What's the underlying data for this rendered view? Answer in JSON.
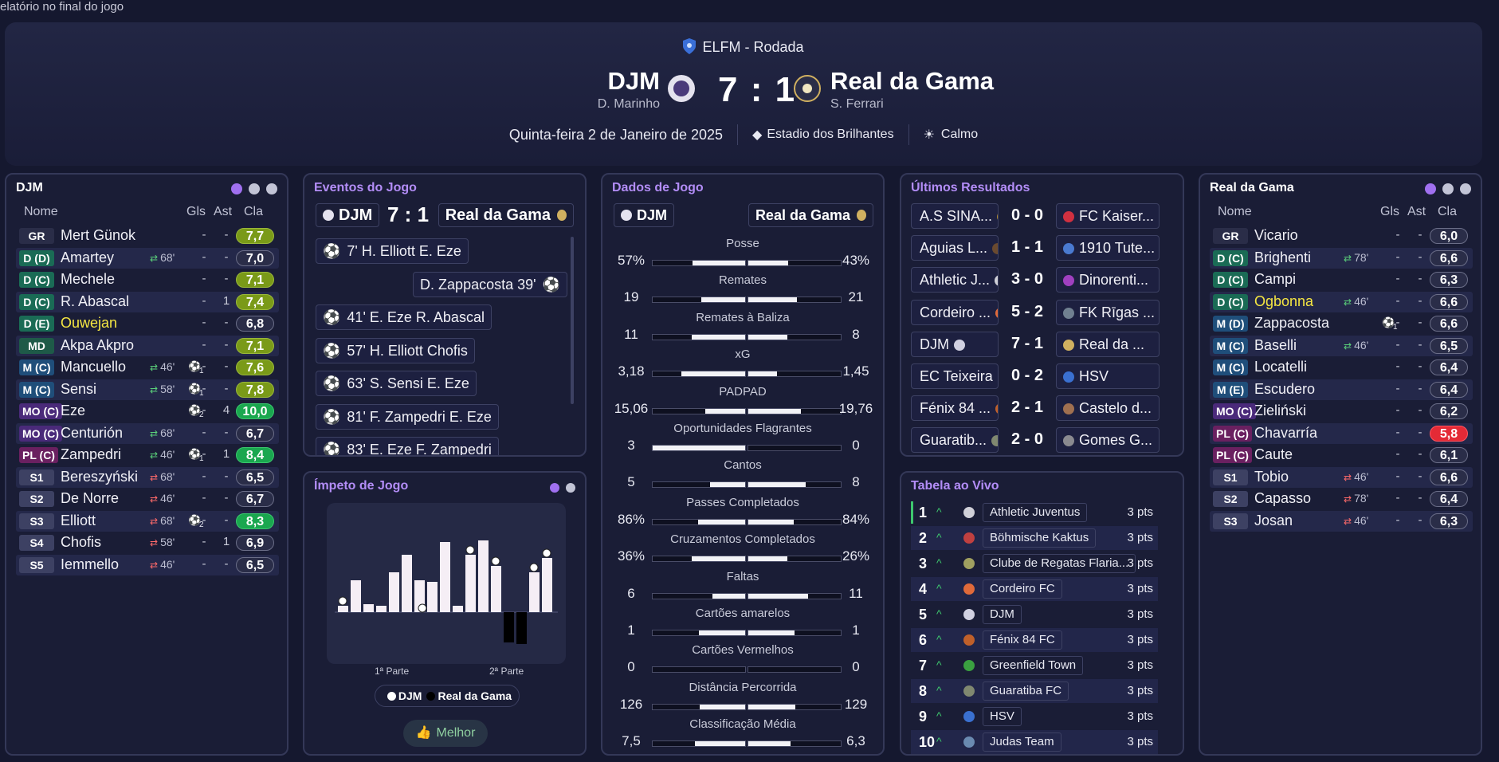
{
  "topbar": {
    "text": "elatório no final do jogo"
  },
  "header": {
    "competition": "ELFM - Rodada",
    "home": {
      "name": "DJM",
      "manager": "D. Marinho"
    },
    "away": {
      "name": "Real da Gama",
      "manager": "S. Ferrari"
    },
    "score": "7 : 1",
    "date": "Quinta-feira 2 de Janeiro de 2025",
    "stadium": "Estadio dos Brilhantes",
    "weather": "Calmo"
  },
  "labels": {
    "name": "Nome",
    "gls": "Gls",
    "ast": "Ast",
    "cla": "Cla"
  },
  "home_panel": {
    "title": "DJM",
    "players": [
      {
        "pos": "GR",
        "name": "Mert Günok",
        "sub": "",
        "gls": "-",
        "ast": "-",
        "rating": "7,7",
        "rc": "olive",
        "pc": "#2a2d48",
        "ev": ""
      },
      {
        "pos": "D (D)",
        "name": "Amartey",
        "sub": "68'",
        "subdir": "out",
        "gls": "-",
        "ast": "-",
        "rating": "7,0",
        "rc": "",
        "pc": "#1a6b55",
        "ev": ""
      },
      {
        "pos": "D (C)",
        "name": "Mechele",
        "sub": "",
        "gls": "-",
        "ast": "-",
        "rating": "7,1",
        "rc": "olive",
        "pc": "#1a6b55",
        "ev": ""
      },
      {
        "pos": "D (C)",
        "name": "R. Abascal",
        "sub": "",
        "gls": "-",
        "ast": "1",
        "rating": "7,4",
        "rc": "olive",
        "pc": "#1a6b55",
        "ev": ""
      },
      {
        "pos": "D (E)",
        "name": "Ouwejan",
        "sub": "",
        "gls": "-",
        "ast": "-",
        "rating": "6,8",
        "rc": "",
        "pc": "#1a6b55",
        "ev": "",
        "yellow": true
      },
      {
        "pos": "MD",
        "name": "Akpa Akpro",
        "sub": "",
        "gls": "-",
        "ast": "-",
        "rating": "7,1",
        "rc": "olive",
        "pc": "#1e5a48",
        "ev": ""
      },
      {
        "pos": "M (C)",
        "name": "Mancuello",
        "sub": "46'",
        "subdir": "out",
        "gls": "-",
        "ast": "-",
        "rating": "7,6",
        "rc": "olive",
        "pc": "#1f4e7a",
        "ev": "1"
      },
      {
        "pos": "M (C)",
        "name": "Sensi",
        "sub": "58'",
        "subdir": "out",
        "gls": "-",
        "ast": "-",
        "rating": "7,8",
        "rc": "olive",
        "pc": "#1f4e7a",
        "ev": "1"
      },
      {
        "pos": "MO (C)",
        "name": "Eze",
        "sub": "",
        "gls": "-",
        "ast": "4",
        "rating": "10,0",
        "rc": "green",
        "pc": "#4a2a7a",
        "ev": "2"
      },
      {
        "pos": "MO (C)",
        "name": "Centurión",
        "sub": "68'",
        "subdir": "out",
        "gls": "-",
        "ast": "-",
        "rating": "6,7",
        "rc": "",
        "pc": "#4a2a7a",
        "ev": ""
      },
      {
        "pos": "PL (C)",
        "name": "Zampedri",
        "sub": "46'",
        "subdir": "out",
        "gls": "-",
        "ast": "1",
        "rating": "8,4",
        "rc": "green",
        "pc": "#6a2060",
        "ev": "1"
      },
      {
        "pos": "S1",
        "name": "Bereszyński",
        "sub": "68'",
        "subdir": "in",
        "gls": "-",
        "ast": "-",
        "rating": "6,5",
        "rc": "",
        "pc": "#3d4163",
        "ev": ""
      },
      {
        "pos": "S2",
        "name": "De Norre",
        "sub": "46'",
        "subdir": "in",
        "gls": "-",
        "ast": "-",
        "rating": "6,7",
        "rc": "",
        "pc": "#3d4163",
        "ev": ""
      },
      {
        "pos": "S3",
        "name": "Elliott",
        "sub": "68'",
        "subdir": "in",
        "gls": "-",
        "ast": "-",
        "rating": "8,3",
        "rc": "green",
        "pc": "#3d4163",
        "ev": "2"
      },
      {
        "pos": "S4",
        "name": "Chofis",
        "sub": "58'",
        "subdir": "in",
        "gls": "-",
        "ast": "1",
        "rating": "6,9",
        "rc": "",
        "pc": "#3d4163",
        "ev": ""
      },
      {
        "pos": "S5",
        "name": "Iemmello",
        "sub": "46'",
        "subdir": "in",
        "gls": "-",
        "ast": "-",
        "rating": "6,5",
        "rc": "",
        "pc": "#3d4163",
        "ev": ""
      }
    ]
  },
  "events_panel": {
    "title": "Eventos do Jogo",
    "home": "DJM",
    "score": "7 : 1",
    "away": "Real da Gama",
    "events": [
      {
        "side": "home",
        "text": "7' H. Elliott E. Eze"
      },
      {
        "side": "away",
        "text": "D. Zappacosta 39'"
      },
      {
        "side": "home",
        "text": "41' E. Eze R. Abascal"
      },
      {
        "side": "home",
        "text": "57' H. Elliott Chofis"
      },
      {
        "side": "home",
        "text": "63' S. Sensi E. Eze"
      },
      {
        "side": "home",
        "text": "81' F. Zampedri E. Eze"
      },
      {
        "side": "home",
        "text": "83' E. Eze F. Zampedri"
      }
    ]
  },
  "momentum_panel": {
    "title": "Ímpeto de Jogo",
    "half1": "1ª Parte",
    "half2": "2ª Parte",
    "legend_home": "DJM",
    "legend_away": "Real da Gama",
    "best": "Melhor"
  },
  "stats_panel": {
    "title": "Dados de Jogo",
    "home": "DJM",
    "away": "Real da Gama",
    "stats": [
      {
        "label": "Posse",
        "l": "57%",
        "r": "43%",
        "lp": 0.57,
        "rp": 0.43
      },
      {
        "label": "Remates",
        "l": "19",
        "r": "21",
        "lp": 0.475,
        "rp": 0.525
      },
      {
        "label": "Remates à Baliza",
        "l": "11",
        "r": "8",
        "lp": 0.58,
        "rp": 0.42
      },
      {
        "label": "xG",
        "l": "3,18",
        "r": "1,45",
        "lp": 0.69,
        "rp": 0.31
      },
      {
        "label": "PADPAD",
        "l": "15,06",
        "r": "19,76",
        "lp": 0.43,
        "rp": 0.57
      },
      {
        "label": "Oportunidades Flagrantes",
        "l": "3",
        "r": "0",
        "lp": 1,
        "rp": 0
      },
      {
        "label": "Cantos",
        "l": "5",
        "r": "8",
        "lp": 0.38,
        "rp": 0.62
      },
      {
        "label": "Passes Completados",
        "l": "86%",
        "r": "84%",
        "lp": 0.51,
        "rp": 0.49
      },
      {
        "label": "Cruzamentos Completados",
        "l": "36%",
        "r": "26%",
        "lp": 0.58,
        "rp": 0.42
      },
      {
        "label": "Faltas",
        "l": "6",
        "r": "11",
        "lp": 0.35,
        "rp": 0.65
      },
      {
        "label": "Cartões amarelos",
        "l": "1",
        "r": "1",
        "lp": 0.5,
        "rp": 0.5
      },
      {
        "label": "Cartões Vermelhos",
        "l": "0",
        "r": "0",
        "lp": 0,
        "rp": 0
      },
      {
        "label": "Distância Percorrida",
        "l": "126",
        "r": "129",
        "lp": 0.49,
        "rp": 0.51
      },
      {
        "label": "Classificação Média",
        "l": "7,5",
        "r": "6,3",
        "lp": 0.54,
        "rp": 0.46
      }
    ]
  },
  "results_panel": {
    "title": "Últimos Resultados",
    "results": [
      {
        "home": "A.S SINA...",
        "score": "0 - 0",
        "away": "FC Kaiser...",
        "hc": "#b08a30",
        "ac": "#d03040"
      },
      {
        "home": "Aguias L...",
        "score": "1 - 1",
        "away": "1910 Tute...",
        "hc": "#6a4a30",
        "ac": "#4a7ad0"
      },
      {
        "home": "Athletic J...",
        "score": "3 - 0",
        "away": "Dinorenti...",
        "hc": "#d0d0d8",
        "ac": "#a040c0"
      },
      {
        "home": "Cordeiro ...",
        "score": "5 - 2",
        "away": "FK Rīgas ...",
        "hc": "#e06a3a",
        "ac": "#708090"
      },
      {
        "home": "DJM",
        "score": "7 - 1",
        "away": "Real da ...",
        "hc": "#d0d0e0",
        "ac": "#d0b060"
      },
      {
        "home": "EC Teixeira",
        "score": "0 - 2",
        "away": "HSV",
        "hc": "#a04050",
        "ac": "#3a70d0"
      },
      {
        "home": "Fénix 84 ...",
        "score": "2 - 1",
        "away": "Castelo d...",
        "hc": "#c0602a",
        "ac": "#a07050"
      },
      {
        "home": "Guaratib...",
        "score": "2 - 0",
        "away": "Gomes G...",
        "hc": "#808870",
        "ac": "#8a8a90"
      }
    ]
  },
  "table_panel": {
    "title": "Tabela ao Vivo",
    "rows": [
      {
        "rank": "1",
        "name": "Athletic Juventus",
        "pts": "3 pts",
        "c": "#d0d0d8"
      },
      {
        "rank": "2",
        "name": "Böhmische Kaktus",
        "pts": "3 pts",
        "c": "#c04040"
      },
      {
        "rank": "3",
        "name": "Clube de Regatas Flaria...",
        "pts": "3 pts",
        "c": "#a0a060"
      },
      {
        "rank": "4",
        "name": "Cordeiro FC",
        "pts": "3 pts",
        "c": "#e06a3a"
      },
      {
        "rank": "5",
        "name": "DJM",
        "pts": "3 pts",
        "c": "#d0d0e0"
      },
      {
        "rank": "6",
        "name": "Fénix 84 FC",
        "pts": "3 pts",
        "c": "#c0602a"
      },
      {
        "rank": "7",
        "name": "Greenfield Town",
        "pts": "3 pts",
        "c": "#3aa040"
      },
      {
        "rank": "8",
        "name": "Guaratiba FC",
        "pts": "3 pts",
        "c": "#808870"
      },
      {
        "rank": "9",
        "name": "HSV",
        "pts": "3 pts",
        "c": "#3a70d0"
      },
      {
        "rank": "10",
        "name": "Judas Team",
        "pts": "3 pts",
        "c": "#6a8ab0"
      }
    ]
  },
  "away_panel": {
    "title": "Real da Gama",
    "players": [
      {
        "pos": "GR",
        "name": "Vicario",
        "sub": "",
        "gls": "-",
        "ast": "-",
        "rating": "6,0",
        "rc": "",
        "pc": "#2a2d48",
        "ev": ""
      },
      {
        "pos": "D (C)",
        "name": "Brighenti",
        "sub": "78'",
        "subdir": "out",
        "gls": "-",
        "ast": "-",
        "rating": "6,6",
        "rc": "",
        "pc": "#1a6b55",
        "ev": ""
      },
      {
        "pos": "D (C)",
        "name": "Campi",
        "sub": "",
        "gls": "-",
        "ast": "-",
        "rating": "6,3",
        "rc": "",
        "pc": "#1a6b55",
        "ev": ""
      },
      {
        "pos": "D (C)",
        "name": "Ogbonna",
        "sub": "46'",
        "subdir": "out",
        "gls": "-",
        "ast": "-",
        "rating": "6,6",
        "rc": "",
        "pc": "#1a6b55",
        "ev": "",
        "yellow": true
      },
      {
        "pos": "M (D)",
        "name": "Zappacosta",
        "sub": "",
        "gls": "-",
        "ast": "-",
        "rating": "6,6",
        "rc": "",
        "pc": "#1f4e7a",
        "ev": "1"
      },
      {
        "pos": "M (C)",
        "name": "Baselli",
        "sub": "46'",
        "subdir": "out",
        "gls": "-",
        "ast": "-",
        "rating": "6,5",
        "rc": "",
        "pc": "#1f4e7a",
        "ev": ""
      },
      {
        "pos": "M (C)",
        "name": "Locatelli",
        "sub": "",
        "gls": "-",
        "ast": "-",
        "rating": "6,4",
        "rc": "",
        "pc": "#1f4e7a",
        "ev": ""
      },
      {
        "pos": "M (E)",
        "name": "Escudero",
        "sub": "",
        "gls": "-",
        "ast": "-",
        "rating": "6,4",
        "rc": "",
        "pc": "#1f4e7a",
        "ev": ""
      },
      {
        "pos": "MO (C)",
        "name": "Zieliński",
        "sub": "",
        "gls": "-",
        "ast": "-",
        "rating": "6,2",
        "rc": "",
        "pc": "#4a2a7a",
        "ev": ""
      },
      {
        "pos": "PL (C)",
        "name": "Chavarría",
        "sub": "",
        "gls": "-",
        "ast": "-",
        "rating": "5,8",
        "rc": "red",
        "pc": "#6a2060",
        "ev": ""
      },
      {
        "pos": "PL (C)",
        "name": "Caute",
        "sub": "",
        "gls": "-",
        "ast": "-",
        "rating": "6,1",
        "rc": "",
        "pc": "#6a2060",
        "ev": ""
      },
      {
        "pos": "S1",
        "name": "Tobio",
        "sub": "46'",
        "subdir": "in",
        "gls": "-",
        "ast": "-",
        "rating": "6,6",
        "rc": "",
        "pc": "#3d4163",
        "ev": ""
      },
      {
        "pos": "S2",
        "name": "Capasso",
        "sub": "78'",
        "subdir": "in",
        "gls": "-",
        "ast": "-",
        "rating": "6,4",
        "rc": "",
        "pc": "#3d4163",
        "ev": ""
      },
      {
        "pos": "S3",
        "name": "Josan",
        "sub": "46'",
        "subdir": "in",
        "gls": "-",
        "ast": "-",
        "rating": "6,3",
        "rc": "",
        "pc": "#3d4163",
        "ev": ""
      }
    ]
  }
}
